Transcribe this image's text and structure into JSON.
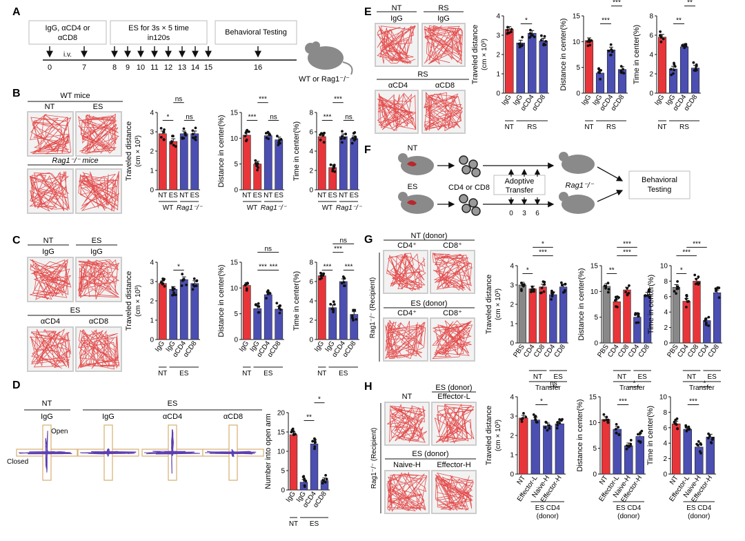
{
  "panels": {
    "A": {
      "letter": "A",
      "box1": [
        "IgG, αCD4 or",
        "αCD8"
      ],
      "box2": [
        "ES for 3s × 5 time",
        "in120s"
      ],
      "box3": "Behavioral Testing",
      "iv": "i.v.",
      "days": [
        "0",
        "7",
        "8",
        "9",
        "10",
        "11",
        "12",
        "13",
        "14",
        "15",
        "16"
      ],
      "mouse_label": "WT or Rag1⁻/⁻"
    },
    "B": {
      "letter": "B",
      "wt_title": "WT mice",
      "rag_title": "Rag1⁻/⁻ mice",
      "nt": "NT",
      "es": "ES"
    },
    "C": {
      "letter": "C",
      "nt": "NT",
      "es": "ES",
      "igg": "IgG",
      "cd4": "αCD4",
      "cd8": "αCD8"
    },
    "D": {
      "letter": "D",
      "nt": "NT",
      "es": "ES",
      "groups": [
        "IgG",
        "IgG",
        "αCD4",
        "αCD8"
      ],
      "open": "Open",
      "closed": "Closed"
    },
    "E": {
      "letter": "E",
      "nt": "NT",
      "rs": "RS",
      "igg": "IgG",
      "cd4": "αCD4",
      "cd8": "αCD8"
    },
    "F": {
      "letter": "F",
      "nt": "NT",
      "es": "ES",
      "cells": "CD4 or CD8",
      "transfer": [
        "Adoptive",
        "Transfer"
      ],
      "days": [
        "0",
        "3",
        "6"
      ],
      "rag": "Rag1⁻/⁻",
      "behav": [
        "Behavioral",
        "Testing"
      ]
    },
    "G": {
      "letter": "G",
      "nt_donor": "NT (donor)",
      "es_donor": "ES (donor)",
      "cd4p": "CD4⁺",
      "cd8p": "CD8⁺",
      "recipient": "Rag1⁻/⁻ (Recipient)"
    },
    "H": {
      "letter": "H",
      "nt": "NT",
      "es_donor": "ES (donor)",
      "effl": "Effector-L",
      "naive": "Naive-H",
      "effh": "Effector-H",
      "recipient": "Rag1⁻/⁻ (Recipient)"
    }
  },
  "chart_data": [
    {
      "id": "B1",
      "type": "bar",
      "ylabel": "Traveled distance",
      "yunit": "(cm × 10³)",
      "yticks": [
        "0",
        "1",
        "2",
        "3",
        "4"
      ],
      "ylim": [
        0,
        4
      ],
      "categories": [
        "NT",
        "ES",
        "NT",
        "ES"
      ],
      "values": [
        2.9,
        2.5,
        2.9,
        2.9
      ],
      "colors": [
        "#e8353a",
        "#e8353a",
        "#4b4fb2",
        "#4b4fb2"
      ],
      "groups": [
        {
          "label": "WT",
          "from": 0,
          "to": 1
        },
        {
          "label": "Rag1⁻/⁻",
          "from": 2,
          "to": 3
        }
      ],
      "sig": [
        {
          "a": 0,
          "b": 1,
          "text": "*"
        },
        {
          "a": 1,
          "b": 2,
          "text": "ns",
          "level": 1
        },
        {
          "a": 2,
          "b": 3,
          "text": "ns"
        }
      ]
    },
    {
      "id": "B2",
      "type": "bar",
      "ylabel": "Distance in center(%)",
      "yticks": [
        "0",
        "5",
        "10",
        "15"
      ],
      "ylim": [
        0,
        15
      ],
      "categories": [
        "NT",
        "ES",
        "NT",
        "ES"
      ],
      "values": [
        10.6,
        5.0,
        10.5,
        9.7
      ],
      "colors": [
        "#e8353a",
        "#e8353a",
        "#4b4fb2",
        "#4b4fb2"
      ],
      "groups": [
        {
          "label": "WT",
          "from": 0,
          "to": 1
        },
        {
          "label": "Rag1⁻/⁻",
          "from": 2,
          "to": 3
        }
      ],
      "sig": [
        {
          "a": 0,
          "b": 1,
          "text": "***"
        },
        {
          "a": 1,
          "b": 2,
          "text": "***",
          "level": 1
        },
        {
          "a": 2,
          "b": 3,
          "text": "ns"
        }
      ]
    },
    {
      "id": "B3",
      "type": "bar",
      "ylabel": "Time in center(%)",
      "yticks": [
        "0",
        "2",
        "4",
        "6",
        "8"
      ],
      "ylim": [
        0,
        8
      ],
      "categories": [
        "NT",
        "ES",
        "NT",
        "ES"
      ],
      "values": [
        5.5,
        2.3,
        5.5,
        5.3
      ],
      "colors": [
        "#e8353a",
        "#e8353a",
        "#4b4fb2",
        "#4b4fb2"
      ],
      "groups": [
        {
          "label": "WT",
          "from": 0,
          "to": 1
        },
        {
          "label": "Rag1⁻/⁻",
          "from": 2,
          "to": 3
        }
      ],
      "sig": [
        {
          "a": 0,
          "b": 1,
          "text": "***"
        },
        {
          "a": 1,
          "b": 2,
          "text": "***",
          "level": 1
        },
        {
          "a": 2,
          "b": 3,
          "text": "ns"
        }
      ]
    },
    {
      "id": "C1",
      "type": "bar",
      "ylabel": "Traveled distance",
      "yunit": "(cm × 10³)",
      "yticks": [
        "0",
        "1",
        "2",
        "3",
        "4"
      ],
      "ylim": [
        0,
        4
      ],
      "categories": [
        "IgG",
        "IgG",
        "αCD4",
        "αCD8"
      ],
      "values": [
        2.9,
        2.6,
        3.1,
        2.9
      ],
      "colors": [
        "#e8353a",
        "#4b4fb2",
        "#4b4fb2",
        "#4b4fb2"
      ],
      "groups": [
        {
          "label": "NT",
          "from": 0,
          "to": 0
        },
        {
          "label": "ES",
          "from": 1,
          "to": 3
        }
      ],
      "sig": [
        {
          "a": 1,
          "b": 2,
          "text": "*"
        }
      ]
    },
    {
      "id": "C2",
      "type": "bar",
      "ylabel": "Distance in center(%)",
      "yticks": [
        "0",
        "5",
        "10",
        "15"
      ],
      "ylim": [
        0,
        15
      ],
      "categories": [
        "IgG",
        "IgG",
        "αCD4",
        "αCD8"
      ],
      "values": [
        10.5,
        6.0,
        8.7,
        5.9
      ],
      "colors": [
        "#e8353a",
        "#4b4fb2",
        "#4b4fb2",
        "#4b4fb2"
      ],
      "groups": [
        {
          "label": "NT",
          "from": 0,
          "to": 0
        },
        {
          "label": "ES",
          "from": 1,
          "to": 3
        }
      ],
      "sig": [
        {
          "a": 1,
          "b": 2,
          "text": "***"
        },
        {
          "a": 2,
          "b": 3,
          "text": "***"
        },
        {
          "a": 1,
          "b": 3,
          "text": "ns",
          "level": 1
        }
      ]
    },
    {
      "id": "C3",
      "type": "bar",
      "ylabel": "Time in center(%)",
      "yticks": [
        "0",
        "2",
        "4",
        "6",
        "8"
      ],
      "ylim": [
        0,
        8
      ],
      "categories": [
        "IgG",
        "IgG",
        "αCD4",
        "αCD8"
      ],
      "values": [
        6.6,
        3.3,
        6.0,
        2.6
      ],
      "colors": [
        "#e8353a",
        "#4b4fb2",
        "#4b4fb2",
        "#4b4fb2"
      ],
      "groups": [
        {
          "label": "NT",
          "from": 0,
          "to": 0
        },
        {
          "label": "ES",
          "from": 1,
          "to": 3
        }
      ],
      "sig": [
        {
          "a": 0,
          "b": 1,
          "text": "***"
        },
        {
          "a": 2,
          "b": 3,
          "text": "***"
        },
        {
          "a": 1,
          "b": 2,
          "text": "***",
          "level": 1
        },
        {
          "a": 1,
          "b": 3,
          "text": "ns",
          "level": 2
        }
      ]
    },
    {
      "id": "D1",
      "type": "bar",
      "ylabel": "Number into open arm",
      "yticks": [
        "0",
        "5",
        "10",
        "15",
        "20"
      ],
      "ylim": [
        0,
        20
      ],
      "categories": [
        "IgG",
        "IgG",
        "αCD4",
        "αCD8"
      ],
      "values": [
        14.3,
        2.0,
        11.9,
        2.4
      ],
      "colors": [
        "#e8353a",
        "#4b4fb2",
        "#4b4fb2",
        "#4b4fb2"
      ],
      "groups": [
        {
          "label": "NT",
          "from": 0,
          "to": 0
        },
        {
          "label": "ES",
          "from": 1,
          "to": 3
        }
      ],
      "sig": [
        {
          "a": 1,
          "b": 2,
          "text": "**"
        },
        {
          "a": 2,
          "b": 3,
          "text": "*",
          "level": 1
        }
      ]
    },
    {
      "id": "E1",
      "type": "bar",
      "ylabel": "Traveled distance",
      "yunit": "(cm × 10³)",
      "yticks": [
        "0",
        "1",
        "2",
        "3",
        "4"
      ],
      "ylim": [
        0,
        4
      ],
      "categories": [
        "IgG",
        "IgG",
        "αCD4",
        "αCD8"
      ],
      "values": [
        3.3,
        2.6,
        3.1,
        2.7
      ],
      "colors": [
        "#e8353a",
        "#4b4fb2",
        "#4b4fb2",
        "#4b4fb2"
      ],
      "groups": [
        {
          "label": "NT",
          "from": 0,
          "to": 0
        },
        {
          "label": "RS",
          "from": 1,
          "to": 3
        }
      ],
      "sig": [
        {
          "a": 1,
          "b": 2,
          "text": "*"
        }
      ]
    },
    {
      "id": "E2",
      "type": "bar",
      "ylabel": "Distance in center(%)",
      "yticks": [
        "0",
        "5",
        "10",
        "15"
      ],
      "ylim": [
        0,
        15
      ],
      "categories": [
        "IgG",
        "IgG",
        "αCD4",
        "αCD8"
      ],
      "values": [
        10.2,
        3.9,
        8.4,
        4.6
      ],
      "colors": [
        "#e8353a",
        "#4b4fb2",
        "#4b4fb2",
        "#4b4fb2"
      ],
      "groups": [
        {
          "label": "NT",
          "from": 0,
          "to": 0
        },
        {
          "label": "RS",
          "from": 1,
          "to": 3
        }
      ],
      "sig": [
        {
          "a": 1,
          "b": 2,
          "text": "***"
        },
        {
          "a": 2,
          "b": 3,
          "text": "***",
          "level": 1
        }
      ]
    },
    {
      "id": "E3",
      "type": "bar",
      "ylabel": "Time in center(%)",
      "yticks": [
        "0",
        "2",
        "4",
        "6",
        "8"
      ],
      "ylim": [
        0,
        8
      ],
      "categories": [
        "IgG",
        "IgG",
        "αCD4",
        "αCD8"
      ],
      "values": [
        5.8,
        2.5,
        4.8,
        2.6
      ],
      "colors": [
        "#e8353a",
        "#4b4fb2",
        "#4b4fb2",
        "#4b4fb2"
      ],
      "groups": [
        {
          "label": "NT",
          "from": 0,
          "to": 0
        },
        {
          "label": "RS",
          "from": 1,
          "to": 3
        }
      ],
      "sig": [
        {
          "a": 1,
          "b": 2,
          "text": "**"
        },
        {
          "a": 2,
          "b": 3,
          "text": "**",
          "level": 1
        }
      ]
    },
    {
      "id": "G1",
      "type": "bar",
      "ylabel": "Traveled distance",
      "yunit": "(cm × 10³)",
      "yticks": [
        "0",
        "1",
        "2",
        "3",
        "4"
      ],
      "ylim": [
        0,
        4
      ],
      "categories": [
        "PBS",
        "CD4",
        "CD8",
        "CD4",
        "CD8"
      ],
      "values": [
        3.0,
        2.8,
        2.9,
        2.5,
        2.9
      ],
      "colors": [
        "#888888",
        "#e8353a",
        "#e8353a",
        "#4b4fb2",
        "#4b4fb2"
      ],
      "groups": [
        {
          "label": "NT",
          "from": 1,
          "to": 2
        },
        {
          "label": "ES",
          "from": 3,
          "to": 4
        }
      ],
      "bottom": "Transfer",
      "sig": [
        {
          "a": 0,
          "b": 1,
          "text": "*"
        },
        {
          "a": 1,
          "b": 3,
          "text": "***",
          "level": 1
        },
        {
          "a": 1,
          "b": 3,
          "text": "*",
          "level": 2
        }
      ]
    },
    {
      "id": "G2",
      "type": "bar",
      "ylabel": "Distance in center(%)",
      "yticks": [
        "0",
        "5",
        "10",
        "15"
      ],
      "ylim": [
        0,
        15
      ],
      "categories": [
        "PBS",
        "CD4",
        "CD8",
        "CD4",
        "CD8"
      ],
      "values": [
        11.0,
        8.0,
        10.3,
        5.0,
        9.3
      ],
      "colors": [
        "#888888",
        "#e8353a",
        "#e8353a",
        "#4b4fb2",
        "#4b4fb2"
      ],
      "groups": [
        {
          "label": "NT",
          "from": 1,
          "to": 2
        },
        {
          "label": "ES",
          "from": 3,
          "to": 4
        }
      ],
      "bottom": "Transfer",
      "sig": [
        {
          "a": 0,
          "b": 1,
          "text": "**"
        },
        {
          "a": 1,
          "b": 3,
          "text": "***",
          "level": 1
        },
        {
          "a": 1,
          "b": 3,
          "text": "***",
          "level": 2
        }
      ]
    },
    {
      "id": "G3",
      "type": "bar",
      "ylabel": "Time in center(%)",
      "yticks": [
        "0",
        "2",
        "4",
        "6",
        "8",
        "10"
      ],
      "ylim": [
        0,
        10
      ],
      "categories": [
        "PBS",
        "CD4",
        "CD8",
        "CD4",
        "CD8"
      ],
      "values": [
        7.2,
        5.4,
        8.0,
        2.9,
        6.5
      ],
      "colors": [
        "#888888",
        "#e8353a",
        "#e8353a",
        "#4b4fb2",
        "#4b4fb2"
      ],
      "groups": [
        {
          "label": "NT",
          "from": 1,
          "to": 2
        },
        {
          "label": "ES",
          "from": 3,
          "to": 4
        }
      ],
      "bottom": "Transfer",
      "sig": [
        {
          "a": 0,
          "b": 1,
          "text": "*"
        },
        {
          "a": 0,
          "b": 2,
          "text": "***",
          "level": 1
        },
        {
          "a": 1,
          "b": 3,
          "text": "***",
          "level": 2
        }
      ]
    },
    {
      "id": "H1",
      "type": "bar",
      "ylabel": "Traveled distance",
      "yunit": "(cm × 10³)",
      "yticks": [
        "0",
        "1",
        "2",
        "3",
        "4"
      ],
      "ylim": [
        0,
        4
      ],
      "categories": [
        "NT",
        "Effector-L",
        "Naive-H",
        "Effector-H"
      ],
      "values": [
        2.9,
        2.8,
        2.5,
        2.6
      ],
      "colors": [
        "#e8353a",
        "#4b4fb2",
        "#4b4fb2",
        "#4b4fb2"
      ],
      "groups": [
        {
          "label": "ES CD4",
          "sub": "(donor)",
          "from": 1,
          "to": 3
        }
      ],
      "sig": [
        {
          "a": 1,
          "b": 2,
          "text": "*"
        },
        {
          "a": 2,
          "b": 3,
          "text": "ns",
          "level": 1
        }
      ]
    },
    {
      "id": "H2",
      "type": "bar",
      "ylabel": "Distance in center(%)",
      "yticks": [
        "0",
        "5",
        "10",
        "15"
      ],
      "ylim": [
        0,
        15
      ],
      "categories": [
        "NT",
        "Effector-L",
        "Naive-H",
        "Effector-H"
      ],
      "values": [
        10.6,
        8.7,
        5.5,
        7.3
      ],
      "colors": [
        "#e8353a",
        "#4b4fb2",
        "#4b4fb2",
        "#4b4fb2"
      ],
      "groups": [
        {
          "label": "ES CD4",
          "sub": "(donor)",
          "from": 1,
          "to": 3
        }
      ],
      "sig": [
        {
          "a": 1,
          "b": 2,
          "text": "***"
        },
        {
          "a": 2,
          "b": 3,
          "text": "*",
          "level": 1
        }
      ]
    },
    {
      "id": "H3",
      "type": "bar",
      "ylabel": "Time in center(%)",
      "yticks": [
        "0",
        "2",
        "4",
        "6",
        "8",
        "10"
      ],
      "ylim": [
        0,
        10
      ],
      "categories": [
        "NT",
        "Effector-L",
        "Naive-H",
        "Effector-H"
      ],
      "values": [
        6.5,
        5.8,
        3.5,
        4.8
      ],
      "colors": [
        "#e8353a",
        "#4b4fb2",
        "#4b4fb2",
        "#4b4fb2"
      ],
      "groups": [
        {
          "label": "ES CD4",
          "sub": "(donor)",
          "from": 1,
          "to": 3
        }
      ],
      "sig": [
        {
          "a": 1,
          "b": 2,
          "text": "***"
        },
        {
          "a": 2,
          "b": 3,
          "text": "*",
          "level": 1
        }
      ]
    }
  ]
}
